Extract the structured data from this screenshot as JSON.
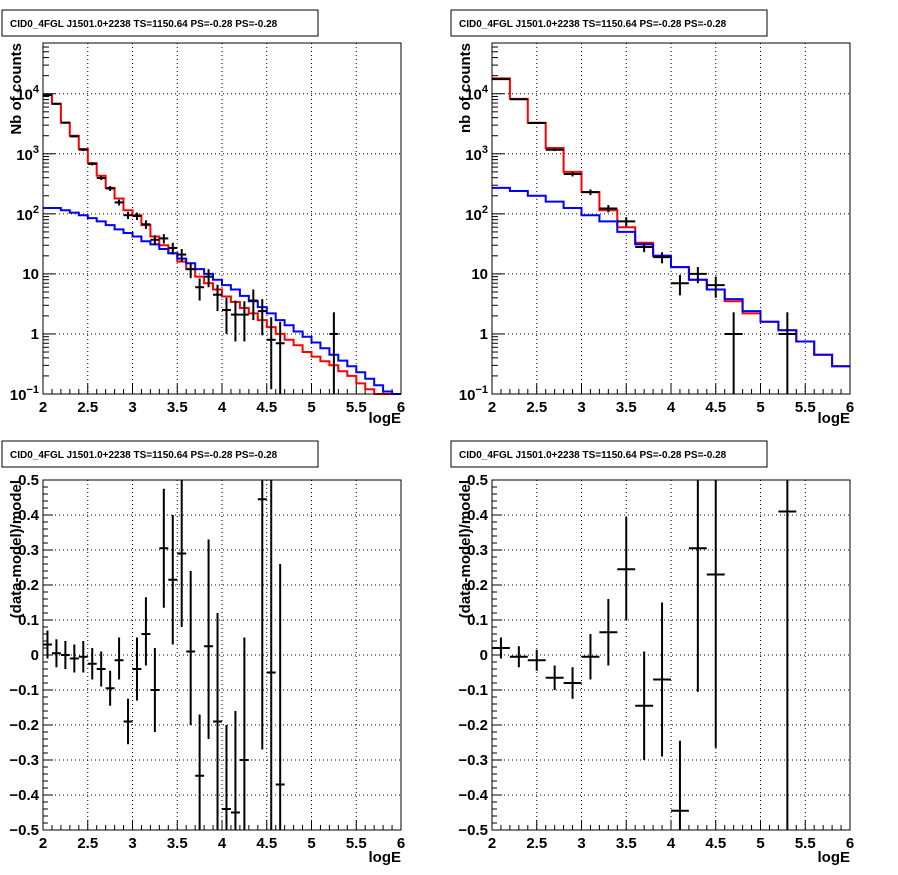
{
  "chart_data": [
    {
      "id": "top-left",
      "type": "line",
      "title": "CID0_4FGL J1501.0+2238 TS=1150.64 PS=-0.28 PS=-0.28",
      "xlabel": "logE",
      "ylabel": "Nb of counts",
      "xlim": [
        2,
        6
      ],
      "ylim": [
        0.1,
        70000
      ],
      "yscale": "log",
      "grid": true,
      "x_ticks": [
        "2",
        "2.5",
        "3",
        "3.5",
        "4",
        "4.5",
        "5",
        "5.5",
        "6"
      ],
      "y_ticks": [
        {
          "v": 0.1,
          "base": "10",
          "exp": "−1"
        },
        {
          "v": 1,
          "t": "1"
        },
        {
          "v": 10,
          "t": "10"
        },
        {
          "v": 100,
          "base": "10",
          "exp": "2"
        },
        {
          "v": 1000,
          "base": "10",
          "exp": "3"
        },
        {
          "v": 10000,
          "base": "10",
          "exp": "4"
        }
      ],
      "step_edges": [
        2.0,
        2.1,
        2.2,
        2.3,
        2.4,
        2.5,
        2.6,
        2.7,
        2.8,
        2.9,
        3.0,
        3.1,
        3.2,
        3.3,
        3.4,
        3.5,
        3.6,
        3.7,
        3.8,
        3.9,
        4.0,
        4.1,
        4.2,
        4.3,
        4.4,
        4.5,
        4.6,
        4.7,
        4.8,
        4.9,
        5.0,
        5.1,
        5.2,
        5.3,
        5.4,
        5.5,
        5.6,
        5.7,
        5.8,
        5.9,
        6.0
      ],
      "series": [
        {
          "name": "red-model",
          "color": "#ff0000",
          "values": [
            9500,
            6800,
            3300,
            2000,
            1200,
            700,
            430,
            270,
            180,
            115,
            95,
            65,
            42,
            30,
            22,
            16,
            12,
            9,
            7,
            5.5,
            4.2,
            3.4,
            2.7,
            2.2,
            1.7,
            1.3,
            1.0,
            0.8,
            0.65,
            0.5,
            0.42,
            0.35,
            0.3,
            0.24,
            0.2,
            0.15,
            0.12,
            0.1,
            0.09,
            0.08
          ]
        },
        {
          "name": "blue-model",
          "color": "#0000ff",
          "values": [
            125,
            125,
            115,
            105,
            95,
            85,
            75,
            65,
            55,
            48,
            42,
            35,
            31,
            26,
            22,
            18,
            15,
            12,
            10,
            8,
            6.5,
            5.5,
            4.3,
            3.5,
            2.8,
            2.2,
            1.7,
            1.4,
            1.1,
            0.9,
            0.72,
            0.58,
            0.45,
            0.36,
            0.29,
            0.23,
            0.18,
            0.14,
            0.11,
            0.09
          ]
        }
      ],
      "points": [
        {
          "x": 2.05,
          "xerr": 0.05,
          "y": 9500,
          "ylo": 9300,
          "yhi": 9700
        },
        {
          "x": 2.15,
          "xerr": 0.05,
          "y": 6800,
          "ylo": 6600,
          "yhi": 7000
        },
        {
          "x": 2.25,
          "xerr": 0.05,
          "y": 3300,
          "ylo": 3200,
          "yhi": 3400
        },
        {
          "x": 2.35,
          "xerr": 0.05,
          "y": 1950,
          "ylo": 1870,
          "yhi": 2030
        },
        {
          "x": 2.45,
          "xerr": 0.05,
          "y": 1170,
          "ylo": 1110,
          "yhi": 1230
        },
        {
          "x": 2.55,
          "xerr": 0.05,
          "y": 680,
          "ylo": 640,
          "yhi": 720
        },
        {
          "x": 2.65,
          "xerr": 0.05,
          "y": 395,
          "ylo": 365,
          "yhi": 425
        },
        {
          "x": 2.75,
          "xerr": 0.05,
          "y": 265,
          "ylo": 240,
          "yhi": 290
        },
        {
          "x": 2.85,
          "xerr": 0.05,
          "y": 155,
          "ylo": 138,
          "yhi": 172
        },
        {
          "x": 2.95,
          "xerr": 0.05,
          "y": 95,
          "ylo": 82,
          "yhi": 108
        },
        {
          "x": 3.05,
          "xerr": 0.05,
          "y": 92,
          "ylo": 79,
          "yhi": 105
        },
        {
          "x": 3.15,
          "xerr": 0.05,
          "y": 67,
          "ylo": 56,
          "yhi": 78
        },
        {
          "x": 3.25,
          "xerr": 0.05,
          "y": 37,
          "ylo": 30,
          "yhi": 44
        },
        {
          "x": 3.35,
          "xerr": 0.05,
          "y": 39,
          "ylo": 32,
          "yhi": 46
        },
        {
          "x": 3.45,
          "xerr": 0.05,
          "y": 27,
          "ylo": 21,
          "yhi": 33
        },
        {
          "x": 3.55,
          "xerr": 0.05,
          "y": 21,
          "ylo": 16,
          "yhi": 26
        },
        {
          "x": 3.65,
          "xerr": 0.05,
          "y": 12,
          "ylo": 8.5,
          "yhi": 15.5
        },
        {
          "x": 3.75,
          "xerr": 0.05,
          "y": 6,
          "ylo": 3.6,
          "yhi": 8.4
        },
        {
          "x": 3.85,
          "xerr": 0.05,
          "y": 9,
          "ylo": 6,
          "yhi": 12
        },
        {
          "x": 3.95,
          "xerr": 0.05,
          "y": 4.5,
          "ylo": 2.4,
          "yhi": 6.6
        },
        {
          "x": 4.05,
          "xerr": 0.05,
          "y": 2.5,
          "ylo": 1.0,
          "yhi": 4.0
        },
        {
          "x": 4.15,
          "xerr": 0.05,
          "y": 2.1,
          "ylo": 0.75,
          "yhi": 3.6
        },
        {
          "x": 4.25,
          "xerr": 0.05,
          "y": 2.1,
          "ylo": 0.75,
          "yhi": 3.5
        },
        {
          "x": 4.35,
          "xerr": 0.05,
          "y": 3.6,
          "ylo": 1.7,
          "yhi": 5.5
        },
        {
          "x": 4.45,
          "xerr": 0.05,
          "y": 2.4,
          "ylo": 0.95,
          "yhi": 3.8
        },
        {
          "x": 4.55,
          "xerr": 0.05,
          "y": 0.8,
          "ylo": 0.12,
          "yhi": 1.9
        },
        {
          "x": 4.65,
          "xerr": 0.05,
          "y": 0.7,
          "ylo": 0.1,
          "yhi": 1.6
        },
        {
          "x": 5.25,
          "xerr": 0.05,
          "y": 1.0,
          "ylo": 0.1,
          "yhi": 2.3
        }
      ]
    },
    {
      "id": "top-right",
      "type": "line",
      "title": "CID0_4FGL J1501.0+2238 TS=1150.64 PS=-0.28 PS=-0.28",
      "xlabel": "logE",
      "ylabel": "nb of counts",
      "xlim": [
        2,
        6
      ],
      "ylim": [
        0.1,
        70000
      ],
      "yscale": "log",
      "grid": true,
      "x_ticks": [
        "2",
        "2.5",
        "3",
        "3.5",
        "4",
        "4.5",
        "5",
        "5.5",
        "6"
      ],
      "y_ticks": [
        {
          "v": 0.1,
          "base": "10",
          "exp": "−1"
        },
        {
          "v": 1,
          "t": "1"
        },
        {
          "v": 10,
          "t": "10"
        },
        {
          "v": 100,
          "base": "10",
          "exp": "2"
        },
        {
          "v": 1000,
          "base": "10",
          "exp": "3"
        },
        {
          "v": 10000,
          "base": "10",
          "exp": "4"
        }
      ],
      "step_edges": [
        2.0,
        2.2,
        2.4,
        2.6,
        2.8,
        3.0,
        3.2,
        3.4,
        3.6,
        3.8,
        4.0,
        4.2,
        4.4,
        4.6,
        4.8,
        5.0,
        5.2,
        5.4,
        5.6,
        5.8,
        6.0
      ],
      "series": [
        {
          "name": "red-model",
          "color": "#ff0000",
          "values": [
            18000,
            8200,
            3300,
            1250,
            500,
            230,
            115,
            60,
            33,
            20,
            13,
            8,
            5.5,
            3.5,
            2.2,
            1.6,
            1.15,
            0.75,
            0.45,
            0.29
          ]
        },
        {
          "name": "blue-model",
          "color": "#0000ff",
          "values": [
            270,
            240,
            200,
            160,
            125,
            95,
            75,
            50,
            31,
            20,
            13,
            8,
            5.5,
            3.8,
            2.4,
            1.6,
            1.15,
            0.75,
            0.45,
            0.29
          ]
        }
      ],
      "points": [
        {
          "x": 2.1,
          "xerr": 0.1,
          "y": 17500,
          "ylo": 17000,
          "yhi": 18000
        },
        {
          "x": 2.3,
          "xerr": 0.1,
          "y": 8100,
          "ylo": 7900,
          "yhi": 8300
        },
        {
          "x": 2.5,
          "xerr": 0.1,
          "y": 3250,
          "ylo": 3150,
          "yhi": 3350
        },
        {
          "x": 2.7,
          "xerr": 0.1,
          "y": 1170,
          "ylo": 1110,
          "yhi": 1230
        },
        {
          "x": 2.9,
          "xerr": 0.1,
          "y": 460,
          "ylo": 420,
          "yhi": 500
        },
        {
          "x": 3.1,
          "xerr": 0.1,
          "y": 230,
          "ylo": 205,
          "yhi": 255
        },
        {
          "x": 3.3,
          "xerr": 0.1,
          "y": 123,
          "ylo": 106,
          "yhi": 140
        },
        {
          "x": 3.5,
          "xerr": 0.1,
          "y": 75,
          "ylo": 62,
          "yhi": 88
        },
        {
          "x": 3.7,
          "xerr": 0.1,
          "y": 28,
          "ylo": 23,
          "yhi": 33
        },
        {
          "x": 3.9,
          "xerr": 0.1,
          "y": 19,
          "ylo": 15,
          "yhi": 23
        },
        {
          "x": 4.1,
          "xerr": 0.1,
          "y": 7,
          "ylo": 4.4,
          "yhi": 9.6
        },
        {
          "x": 4.3,
          "xerr": 0.1,
          "y": 10,
          "ylo": 7,
          "yhi": 13
        },
        {
          "x": 4.5,
          "xerr": 0.1,
          "y": 6.5,
          "ylo": 4,
          "yhi": 9
        },
        {
          "x": 4.7,
          "xerr": 0.1,
          "y": 1.0,
          "ylo": 0.1,
          "yhi": 2.3
        },
        {
          "x": 5.3,
          "xerr": 0.1,
          "y": 1.0,
          "ylo": 0.1,
          "yhi": 2.3
        }
      ]
    },
    {
      "id": "bottom-left",
      "type": "scatter",
      "title": "CID0_4FGL J1501.0+2238 TS=1150.64 PS=-0.28 PS=-0.28",
      "xlabel": "logE",
      "ylabel": "(data-model)/model",
      "xlim": [
        2,
        6
      ],
      "ylim": [
        -0.5,
        0.5
      ],
      "yscale": "linear",
      "grid": true,
      "x_ticks": [
        "2",
        "2.5",
        "3",
        "3.5",
        "4",
        "4.5",
        "5",
        "5.5",
        "6"
      ],
      "y_ticks": [
        {
          "v": -0.5,
          "t": "−0.5"
        },
        {
          "v": -0.4,
          "t": "−0.4"
        },
        {
          "v": -0.3,
          "t": "−0.3"
        },
        {
          "v": -0.2,
          "t": "−0.2"
        },
        {
          "v": -0.1,
          "t": "−0.1"
        },
        {
          "v": 0,
          "t": "0"
        },
        {
          "v": 0.1,
          "t": "0.1"
        },
        {
          "v": 0.2,
          "t": "0.2"
        },
        {
          "v": 0.3,
          "t": "0.3"
        },
        {
          "v": 0.4,
          "t": "0.4"
        },
        {
          "v": 0.5,
          "t": "0.5"
        }
      ],
      "points": [
        {
          "x": 2.05,
          "xerr": 0.05,
          "y": 0.03,
          "ylo": -0.01,
          "yhi": 0.07
        },
        {
          "x": 2.15,
          "xerr": 0.05,
          "y": 0.005,
          "ylo": -0.035,
          "yhi": 0.045
        },
        {
          "x": 2.25,
          "xerr": 0.05,
          "y": 0.0,
          "ylo": -0.04,
          "yhi": 0.04
        },
        {
          "x": 2.35,
          "xerr": 0.05,
          "y": -0.01,
          "ylo": -0.05,
          "yhi": 0.03
        },
        {
          "x": 2.45,
          "xerr": 0.05,
          "y": -0.005,
          "ylo": -0.05,
          "yhi": 0.04
        },
        {
          "x": 2.55,
          "xerr": 0.05,
          "y": -0.025,
          "ylo": -0.07,
          "yhi": 0.02
        },
        {
          "x": 2.65,
          "xerr": 0.05,
          "y": -0.04,
          "ylo": -0.09,
          "yhi": 0.01
        },
        {
          "x": 2.75,
          "xerr": 0.05,
          "y": -0.095,
          "ylo": -0.145,
          "yhi": -0.045
        },
        {
          "x": 2.85,
          "xerr": 0.05,
          "y": -0.015,
          "ylo": -0.07,
          "yhi": 0.05
        },
        {
          "x": 2.95,
          "xerr": 0.05,
          "y": -0.19,
          "ylo": -0.255,
          "yhi": -0.125
        },
        {
          "x": 3.05,
          "xerr": 0.05,
          "y": -0.04,
          "ylo": -0.13,
          "yhi": 0.05
        },
        {
          "x": 3.15,
          "xerr": 0.05,
          "y": 0.06,
          "ylo": -0.03,
          "yhi": 0.165
        },
        {
          "x": 3.25,
          "xerr": 0.05,
          "y": -0.1,
          "ylo": -0.22,
          "yhi": 0.02
        },
        {
          "x": 3.35,
          "xerr": 0.05,
          "y": 0.305,
          "ylo": 0.135,
          "yhi": 0.475
        },
        {
          "x": 3.45,
          "xerr": 0.05,
          "y": 0.215,
          "ylo": 0.03,
          "yhi": 0.4
        },
        {
          "x": 3.55,
          "xerr": 0.05,
          "y": 0.29,
          "ylo": 0.08,
          "yhi": 0.5
        },
        {
          "x": 3.65,
          "xerr": 0.05,
          "y": 0.01,
          "ylo": -0.2,
          "yhi": 0.24
        },
        {
          "x": 3.75,
          "xerr": 0.05,
          "y": -0.345,
          "ylo": -0.5,
          "yhi": -0.17
        },
        {
          "x": 3.85,
          "xerr": 0.05,
          "y": 0.025,
          "ylo": -0.24,
          "yhi": 0.33
        },
        {
          "x": 3.95,
          "xerr": 0.05,
          "y": -0.19,
          "ylo": -0.5,
          "yhi": 0.12
        },
        {
          "x": 4.05,
          "xerr": 0.05,
          "y": -0.44,
          "ylo": -0.5,
          "yhi": -0.2
        },
        {
          "x": 4.15,
          "xerr": 0.05,
          "y": -0.45,
          "ylo": -0.5,
          "yhi": -0.16
        },
        {
          "x": 4.25,
          "xerr": 0.05,
          "y": -0.3,
          "ylo": -0.5,
          "yhi": 0.05
        },
        {
          "x": 4.45,
          "xerr": 0.05,
          "y": 0.445,
          "ylo": -0.27,
          "yhi": 0.5
        },
        {
          "x": 4.55,
          "xerr": 0.05,
          "y": -0.05,
          "ylo": -0.5,
          "yhi": 0.5
        },
        {
          "x": 4.65,
          "xerr": 0.05,
          "y": -0.37,
          "ylo": -0.5,
          "yhi": 0.26
        }
      ]
    },
    {
      "id": "bottom-right",
      "type": "scatter",
      "title": "CID0_4FGL J1501.0+2238 TS=1150.64 PS=-0.28 PS=-0.28",
      "xlabel": "logE",
      "ylabel": "(data-model)/model",
      "xlim": [
        2,
        6
      ],
      "ylim": [
        -0.5,
        0.5
      ],
      "yscale": "linear",
      "grid": true,
      "x_ticks": [
        "2",
        "2.5",
        "3",
        "3.5",
        "4",
        "4.5",
        "5",
        "5.5",
        "6"
      ],
      "y_ticks": [
        {
          "v": -0.5,
          "t": "−0.5"
        },
        {
          "v": -0.4,
          "t": "−0.4"
        },
        {
          "v": -0.3,
          "t": "−0.3"
        },
        {
          "v": -0.2,
          "t": "−0.2"
        },
        {
          "v": -0.1,
          "t": "−0.1"
        },
        {
          "v": 0,
          "t": "0"
        },
        {
          "v": 0.1,
          "t": "0.1"
        },
        {
          "v": 0.2,
          "t": "0.2"
        },
        {
          "v": 0.3,
          "t": "0.3"
        },
        {
          "v": 0.4,
          "t": "0.4"
        },
        {
          "v": 0.5,
          "t": "0.5"
        }
      ],
      "points": [
        {
          "x": 2.1,
          "xerr": 0.1,
          "y": 0.02,
          "ylo": -0.01,
          "yhi": 0.05
        },
        {
          "x": 2.3,
          "xerr": 0.1,
          "y": -0.005,
          "ylo": -0.035,
          "yhi": 0.025
        },
        {
          "x": 2.5,
          "xerr": 0.1,
          "y": -0.015,
          "ylo": -0.045,
          "yhi": 0.015
        },
        {
          "x": 2.7,
          "xerr": 0.1,
          "y": -0.065,
          "ylo": -0.1,
          "yhi": -0.03
        },
        {
          "x": 2.9,
          "xerr": 0.1,
          "y": -0.08,
          "ylo": -0.125,
          "yhi": -0.035
        },
        {
          "x": 3.1,
          "xerr": 0.1,
          "y": -0.005,
          "ylo": -0.07,
          "yhi": 0.06
        },
        {
          "x": 3.3,
          "xerr": 0.1,
          "y": 0.065,
          "ylo": -0.03,
          "yhi": 0.16
        },
        {
          "x": 3.5,
          "xerr": 0.1,
          "y": 0.245,
          "ylo": 0.1,
          "yhi": 0.395
        },
        {
          "x": 3.7,
          "xerr": 0.1,
          "y": -0.145,
          "ylo": -0.3,
          "yhi": 0.01
        },
        {
          "x": 3.9,
          "xerr": 0.1,
          "y": -0.07,
          "ylo": -0.29,
          "yhi": 0.15
        },
        {
          "x": 4.1,
          "xerr": 0.1,
          "y": -0.445,
          "ylo": -0.5,
          "yhi": -0.245
        },
        {
          "x": 4.3,
          "xerr": 0.1,
          "y": 0.305,
          "ylo": -0.105,
          "yhi": 0.5
        },
        {
          "x": 4.5,
          "xerr": 0.1,
          "y": 0.23,
          "ylo": -0.265,
          "yhi": 0.5
        },
        {
          "x": 5.3,
          "xerr": 0.1,
          "y": 0.41,
          "ylo": -0.5,
          "yhi": 0.5
        }
      ]
    }
  ]
}
